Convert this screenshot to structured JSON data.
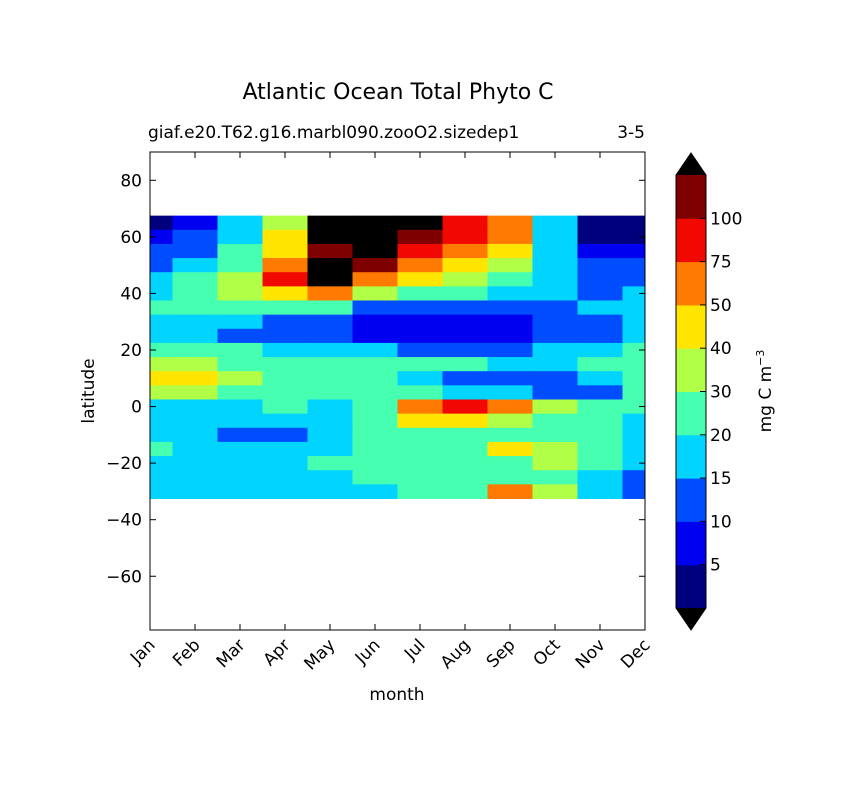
{
  "chart_data": {
    "type": "contour",
    "title": "Atlantic Ocean Total Phyto C",
    "subtitle_left": "giaf.e20.T62.g16.marbl090.zooO2.sizedep1",
    "subtitle_right": "3-5",
    "xlabel": "month",
    "ylabel": "latitude",
    "categories": [
      "Jan",
      "Feb",
      "Mar",
      "Apr",
      "May",
      "Jun",
      "Jul",
      "Aug",
      "Sep",
      "Oct",
      "Nov",
      "Dec"
    ],
    "y": [
      65,
      60,
      55,
      50,
      45,
      40,
      35,
      30,
      25,
      20,
      15,
      10,
      5,
      0,
      -5,
      -10,
      -15,
      -20,
      -25,
      -30
    ],
    "z": [
      [
        4,
        7,
        17,
        35,
        130,
        150,
        140,
        85,
        60,
        17,
        4,
        3
      ],
      [
        7,
        10,
        17,
        40,
        130,
        150,
        110,
        80,
        50,
        15,
        4,
        4
      ],
      [
        10,
        12,
        20,
        45,
        100,
        140,
        90,
        60,
        45,
        15,
        7,
        7
      ],
      [
        12,
        15,
        25,
        60,
        150,
        110,
        55,
        45,
        35,
        17,
        10,
        10
      ],
      [
        15,
        20,
        30,
        85,
        150,
        70,
        40,
        35,
        25,
        15,
        10,
        12
      ],
      [
        17,
        25,
        35,
        40,
        60,
        35,
        25,
        20,
        17,
        15,
        12,
        15
      ],
      [
        20,
        25,
        25,
        25,
        20,
        12,
        10,
        10,
        10,
        12,
        15,
        17
      ],
      [
        17,
        17,
        15,
        12,
        10,
        7,
        7,
        7,
        7,
        10,
        12,
        15
      ],
      [
        15,
        15,
        12,
        12,
        10,
        7,
        7,
        7,
        7,
        10,
        12,
        15
      ],
      [
        25,
        25,
        20,
        17,
        15,
        15,
        12,
        12,
        12,
        15,
        15,
        20
      ],
      [
        35,
        30,
        25,
        25,
        20,
        20,
        20,
        20,
        17,
        17,
        20,
        25
      ],
      [
        45,
        45,
        35,
        25,
        20,
        20,
        15,
        12,
        12,
        12,
        15,
        20
      ],
      [
        30,
        30,
        25,
        25,
        20,
        20,
        20,
        17,
        15,
        12,
        12,
        20
      ],
      [
        15,
        15,
        17,
        20,
        17,
        25,
        60,
        85,
        60,
        30,
        20,
        25
      ],
      [
        17,
        17,
        17,
        17,
        17,
        20,
        40,
        45,
        35,
        25,
        20,
        17
      ],
      [
        17,
        17,
        12,
        12,
        17,
        20,
        25,
        25,
        25,
        20,
        20,
        15
      ],
      [
        20,
        17,
        17,
        17,
        17,
        20,
        25,
        25,
        45,
        30,
        20,
        17
      ],
      [
        17,
        17,
        17,
        17,
        20,
        20,
        25,
        25,
        25,
        30,
        20,
        17
      ],
      [
        17,
        17,
        17,
        17,
        17,
        20,
        20,
        25,
        25,
        25,
        17,
        12
      ],
      [
        15,
        15,
        17,
        17,
        17,
        17,
        20,
        25,
        60,
        30,
        17,
        12
      ]
    ],
    "ylim": [
      -79,
      90
    ],
    "yticks": [
      {
        "value": -60,
        "label": "−60"
      },
      {
        "value": -40,
        "label": "−40"
      },
      {
        "value": -20,
        "label": "−20"
      },
      0,
      20,
      40,
      60,
      80
    ],
    "levels": [
      0,
      5,
      10,
      15,
      20,
      30,
      40,
      50,
      75,
      100,
      125
    ],
    "colors": [
      "#00007f",
      "#0000f1",
      "#004cff",
      "#00d4ff",
      "#46ffb1",
      "#b1ff46",
      "#ffe500",
      "#ff7a00",
      "#f10800",
      "#7f0000"
    ],
    "under_color": "#000000",
    "over_color": "#000000",
    "colorbar_ticks": [
      5,
      10,
      15,
      20,
      30,
      40,
      50,
      75,
      100
    ],
    "colorbar_label": "mg C m",
    "colorbar_label_exponent": "−3"
  }
}
